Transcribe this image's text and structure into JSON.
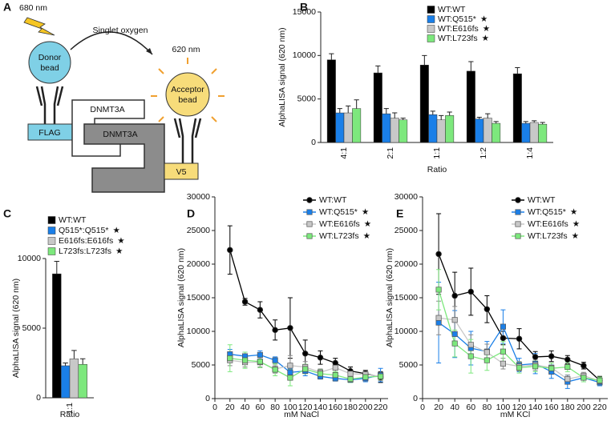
{
  "diagram": {
    "panel": "A",
    "wavelength_in": "680 nm",
    "transfer": "Singlet oxygen",
    "wavelength_out": "620 nm",
    "donor": [
      "Donor",
      "bead"
    ],
    "acceptor": [
      "Acceptor",
      "bead"
    ],
    "tag_left": "FLAG",
    "tag_right": "V5",
    "protein_left": "DNMT3A",
    "protein_right": "DNMT3A"
  },
  "chart_data": [
    {
      "type": "bar",
      "panel": "B",
      "xlabel": "Ratio",
      "ylabel": "AlphaLISA signal (620 nm)",
      "categories": [
        "4:1",
        "2:1",
        "1:1",
        "1:2",
        "1:4"
      ],
      "ylim": [
        0,
        15000
      ],
      "yticks": [
        0,
        5000,
        10000,
        15000
      ],
      "series": [
        {
          "name": "WT:WT",
          "color": "#000000",
          "values": [
            9500,
            8000,
            8900,
            8200,
            7900
          ],
          "errors": [
            700,
            800,
            1100,
            1100,
            700
          ]
        },
        {
          "name": "WT:Q515*",
          "color": "#1a7fe8",
          "annotation": "★",
          "values": [
            3400,
            3300,
            3200,
            2700,
            2200
          ],
          "errors": [
            500,
            600,
            400,
            200,
            200
          ]
        },
        {
          "name": "WT:E616fs",
          "color": "#c8c8c8",
          "annotation": "★",
          "values": [
            3400,
            2800,
            2600,
            2800,
            2300
          ],
          "errors": [
            800,
            600,
            500,
            500,
            200
          ]
        },
        {
          "name": "WT:L723fs",
          "color": "#7de87d",
          "annotation": "★",
          "values": [
            3900,
            2600,
            3100,
            2200,
            2100
          ],
          "errors": [
            1000,
            200,
            400,
            200,
            200
          ]
        }
      ]
    },
    {
      "type": "bar",
      "panel": "C",
      "xlabel": "Ratio",
      "ylabel": "AlphaLISA signal (620 nm)",
      "categories": [
        "1:1"
      ],
      "ylim": [
        0,
        10000
      ],
      "yticks": [
        0,
        5000,
        10000
      ],
      "series": [
        {
          "name": "WT:WT",
          "color": "#000000",
          "values": [
            8900
          ],
          "errors": [
            900
          ]
        },
        {
          "name": "Q515*:Q515*",
          "color": "#1a7fe8",
          "annotation": "★",
          "values": [
            2300
          ],
          "errors": [
            200
          ]
        },
        {
          "name": "E616fs:E616fs",
          "color": "#c8c8c8",
          "annotation": "★",
          "values": [
            2800
          ],
          "errors": [
            600
          ]
        },
        {
          "name": "L723fs:L723fs",
          "color": "#7de87d",
          "annotation": "★",
          "values": [
            2400
          ],
          "errors": [
            400
          ]
        }
      ]
    },
    {
      "type": "line",
      "panel": "D",
      "xlabel": "mM NaCl",
      "ylabel": "AlphaLISA signal (620 nm)",
      "x": [
        20,
        40,
        60,
        80,
        100,
        120,
        140,
        160,
        180,
        200,
        220
      ],
      "xlim": [
        0,
        230
      ],
      "xticks": [
        0,
        20,
        40,
        60,
        80,
        100,
        120,
        140,
        160,
        180,
        200,
        220
      ],
      "ylim": [
        0,
        30000
      ],
      "yticks": [
        0,
        5000,
        10000,
        15000,
        20000,
        25000,
        30000
      ],
      "series": [
        {
          "name": "WT:WT",
          "color": "#000000",
          "marker": "circle",
          "values": [
            22100,
            14400,
            13200,
            10200,
            10500,
            6700,
            6100,
            5300,
            4100,
            3700,
            3200
          ],
          "errors": [
            3600,
            500,
            1200,
            1500,
            4500,
            2000,
            1000,
            700,
            600,
            500,
            800
          ]
        },
        {
          "name": "WT:Q515*",
          "color": "#1a7fe8",
          "marker": "square",
          "annotation": "★",
          "values": [
            6600,
            6300,
            6500,
            5700,
            3900,
            4100,
            3300,
            3000,
            2800,
            3000,
            3500
          ],
          "errors": [
            700,
            600,
            600,
            500,
            500,
            700,
            400,
            400,
            400,
            500,
            1000
          ]
        },
        {
          "name": "WT:E616fs",
          "color": "#c8c8c8",
          "marker": "square",
          "annotation": "★",
          "values": [
            5700,
            5400,
            5400,
            4400,
            4900,
            4700,
            3900,
            4600,
            3700,
            3600,
            3300
          ],
          "errors": [
            800,
            700,
            700,
            600,
            1500,
            800,
            500,
            700,
            500,
            500,
            600
          ]
        },
        {
          "name": "WT:L723fs",
          "color": "#7de87d",
          "marker": "square",
          "annotation": "★",
          "values": [
            6000,
            5700,
            5500,
            4300,
            3100,
            4400,
            3700,
            3500,
            2900,
            3200,
            3300
          ],
          "errors": [
            2000,
            1200,
            900,
            900,
            1200,
            700,
            600,
            500,
            500,
            500,
            500
          ]
        }
      ]
    },
    {
      "type": "line",
      "panel": "E",
      "xlabel": "mM KCl",
      "ylabel": "AlphaLISA signal (620 nm)",
      "x": [
        20,
        40,
        60,
        80,
        100,
        120,
        140,
        160,
        180,
        200,
        220
      ],
      "xlim": [
        0,
        230
      ],
      "xticks": [
        0,
        20,
        40,
        60,
        80,
        100,
        120,
        140,
        160,
        180,
        200,
        220
      ],
      "ylim": [
        0,
        30000
      ],
      "yticks": [
        0,
        5000,
        10000,
        15000,
        20000,
        25000,
        30000
      ],
      "series": [
        {
          "name": "WT:WT",
          "color": "#000000",
          "marker": "circle",
          "values": [
            21500,
            15300,
            15900,
            13300,
            9000,
            8900,
            6200,
            6300,
            5800,
            4900,
            2700
          ],
          "errors": [
            6000,
            3500,
            3500,
            2000,
            1000,
            1500,
            800,
            800,
            600,
            500,
            600
          ]
        },
        {
          "name": "WT:Q515*",
          "color": "#1a7fe8",
          "marker": "square",
          "annotation": "★",
          "values": [
            11300,
            9600,
            7500,
            7000,
            10700,
            5000,
            5200,
            4000,
            2500,
            3100,
            2400
          ],
          "errors": [
            6000,
            3500,
            2500,
            1500,
            2500,
            1000,
            1500,
            1000,
            1000,
            600,
            500
          ]
        },
        {
          "name": "WT:E616fs",
          "color": "#c8c8c8",
          "marker": "square",
          "annotation": "★",
          "values": [
            12000,
            11700,
            8000,
            6900,
            5200,
            4800,
            5000,
            4600,
            2900,
            3400,
            2600
          ],
          "errors": [
            2500,
            2000,
            1500,
            1200,
            800,
            700,
            800,
            700,
            600,
            500,
            500
          ]
        },
        {
          "name": "WT:L723fs",
          "color": "#7de87d",
          "marker": "square",
          "annotation": "★",
          "values": [
            16200,
            8200,
            6300,
            5700,
            7000,
            4600,
            4800,
            4500,
            4700,
            3100,
            2700
          ],
          "errors": [
            3000,
            2000,
            2500,
            1500,
            1500,
            800,
            800,
            800,
            700,
            600,
            500
          ]
        }
      ]
    }
  ]
}
